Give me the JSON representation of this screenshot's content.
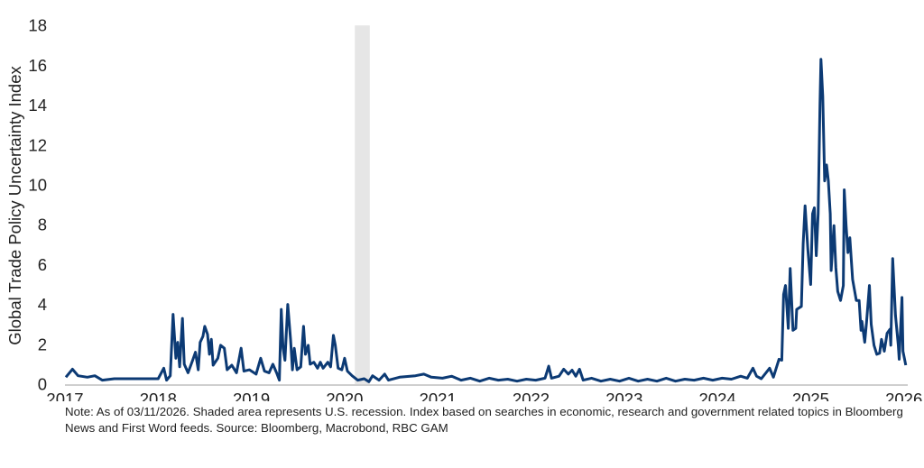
{
  "chart_data": {
    "type": "line",
    "title": "",
    "xlabel": "",
    "ylabel": "Global Trade Policy Uncertainty Index",
    "xlim": [
      2017,
      2026.05
    ],
    "ylim": [
      0,
      18
    ],
    "x_ticks": [
      "2017",
      "2018",
      "2019",
      "2020",
      "2021",
      "2022",
      "2023",
      "2024",
      "2025",
      "2026"
    ],
    "y_ticks": [
      "0",
      "2",
      "4",
      "6",
      "8",
      "10",
      "12",
      "14",
      "16",
      "18"
    ],
    "grid": false,
    "legend": "none",
    "colors": {
      "line": "#0c3a74",
      "recession": "#e6e6e6",
      "axis": "#bfbfbf"
    },
    "recession": {
      "start": 2020.11,
      "end": 2020.27
    },
    "series": [
      {
        "points": [
          [
            2017.01,
            0.35
          ],
          [
            2017.08,
            0.75
          ],
          [
            2017.14,
            0.42
          ],
          [
            2017.24,
            0.35
          ],
          [
            2017.32,
            0.42
          ],
          [
            2017.4,
            0.2
          ],
          [
            2017.53,
            0.27
          ],
          [
            2017.66,
            0.27
          ],
          [
            2017.79,
            0.27
          ],
          [
            2017.92,
            0.27
          ],
          [
            2018.0,
            0.27
          ],
          [
            2018.06,
            0.8
          ],
          [
            2018.09,
            0.2
          ],
          [
            2018.13,
            0.42
          ],
          [
            2018.16,
            3.5
          ],
          [
            2018.19,
            1.3
          ],
          [
            2018.21,
            2.1
          ],
          [
            2018.23,
            0.87
          ],
          [
            2018.26,
            3.3
          ],
          [
            2018.28,
            1.0
          ],
          [
            2018.32,
            0.57
          ],
          [
            2018.37,
            1.2
          ],
          [
            2018.4,
            1.6
          ],
          [
            2018.43,
            0.72
          ],
          [
            2018.45,
            2.1
          ],
          [
            2018.48,
            2.4
          ],
          [
            2018.5,
            2.9
          ],
          [
            2018.53,
            2.5
          ],
          [
            2018.55,
            1.5
          ],
          [
            2018.57,
            2.25
          ],
          [
            2018.59,
            0.95
          ],
          [
            2018.64,
            1.3
          ],
          [
            2018.67,
            1.95
          ],
          [
            2018.71,
            1.8
          ],
          [
            2018.74,
            0.72
          ],
          [
            2018.79,
            0.95
          ],
          [
            2018.84,
            0.57
          ],
          [
            2018.89,
            1.8
          ],
          [
            2018.92,
            0.65
          ],
          [
            2018.98,
            0.72
          ],
          [
            2019.05,
            0.5
          ],
          [
            2019.1,
            1.3
          ],
          [
            2019.14,
            0.65
          ],
          [
            2019.19,
            0.57
          ],
          [
            2019.23,
            1.0
          ],
          [
            2019.27,
            0.57
          ],
          [
            2019.3,
            0.2
          ],
          [
            2019.32,
            3.75
          ],
          [
            2019.34,
            1.8
          ],
          [
            2019.36,
            1.2
          ],
          [
            2019.39,
            4.0
          ],
          [
            2019.42,
            2.25
          ],
          [
            2019.44,
            0.72
          ],
          [
            2019.46,
            1.8
          ],
          [
            2019.49,
            0.72
          ],
          [
            2019.53,
            0.87
          ],
          [
            2019.56,
            2.9
          ],
          [
            2019.58,
            1.5
          ],
          [
            2019.61,
            1.95
          ],
          [
            2019.63,
            1.0
          ],
          [
            2019.67,
            1.1
          ],
          [
            2019.71,
            0.8
          ],
          [
            2019.74,
            1.1
          ],
          [
            2019.77,
            0.8
          ],
          [
            2019.82,
            1.1
          ],
          [
            2019.85,
            0.87
          ],
          [
            2019.88,
            2.45
          ],
          [
            2019.9,
            1.95
          ],
          [
            2019.93,
            0.8
          ],
          [
            2019.97,
            0.72
          ],
          [
            2020.0,
            1.3
          ],
          [
            2020.03,
            0.65
          ],
          [
            2020.08,
            0.42
          ],
          [
            2020.14,
            0.2
          ],
          [
            2020.21,
            0.27
          ],
          [
            2020.26,
            0.12
          ],
          [
            2020.3,
            0.42
          ],
          [
            2020.37,
            0.2
          ],
          [
            2020.43,
            0.5
          ],
          [
            2020.47,
            0.2
          ],
          [
            2020.59,
            0.35
          ],
          [
            2020.76,
            0.42
          ],
          [
            2020.85,
            0.5
          ],
          [
            2020.93,
            0.35
          ],
          [
            2021.05,
            0.3
          ],
          [
            2021.15,
            0.4
          ],
          [
            2021.25,
            0.2
          ],
          [
            2021.35,
            0.3
          ],
          [
            2021.45,
            0.15
          ],
          [
            2021.55,
            0.3
          ],
          [
            2021.65,
            0.2
          ],
          [
            2021.75,
            0.25
          ],
          [
            2021.85,
            0.15
          ],
          [
            2021.95,
            0.25
          ],
          [
            2022.05,
            0.2
          ],
          [
            2022.15,
            0.3
          ],
          [
            2022.19,
            0.9
          ],
          [
            2022.22,
            0.3
          ],
          [
            2022.3,
            0.4
          ],
          [
            2022.35,
            0.75
          ],
          [
            2022.4,
            0.5
          ],
          [
            2022.44,
            0.7
          ],
          [
            2022.48,
            0.4
          ],
          [
            2022.52,
            0.75
          ],
          [
            2022.56,
            0.2
          ],
          [
            2022.65,
            0.3
          ],
          [
            2022.75,
            0.15
          ],
          [
            2022.85,
            0.25
          ],
          [
            2022.95,
            0.15
          ],
          [
            2023.05,
            0.3
          ],
          [
            2023.15,
            0.15
          ],
          [
            2023.25,
            0.25
          ],
          [
            2023.35,
            0.15
          ],
          [
            2023.45,
            0.3
          ],
          [
            2023.55,
            0.15
          ],
          [
            2023.65,
            0.25
          ],
          [
            2023.75,
            0.2
          ],
          [
            2023.85,
            0.3
          ],
          [
            2023.95,
            0.2
          ],
          [
            2024.05,
            0.3
          ],
          [
            2024.15,
            0.25
          ],
          [
            2024.25,
            0.4
          ],
          [
            2024.32,
            0.3
          ],
          [
            2024.38,
            0.8
          ],
          [
            2024.42,
            0.4
          ],
          [
            2024.47,
            0.27
          ],
          [
            2024.56,
            0.8
          ],
          [
            2024.6,
            0.35
          ],
          [
            2024.66,
            1.25
          ],
          [
            2024.69,
            1.2
          ],
          [
            2024.71,
            4.5
          ],
          [
            2024.73,
            4.95
          ],
          [
            2024.76,
            2.8
          ],
          [
            2024.78,
            5.8
          ],
          [
            2024.81,
            2.7
          ],
          [
            2024.84,
            2.8
          ],
          [
            2024.85,
            3.75
          ],
          [
            2024.9,
            3.9
          ],
          [
            2024.92,
            7.05
          ],
          [
            2024.94,
            8.95
          ],
          [
            2024.97,
            6.75
          ],
          [
            2025.0,
            5.0
          ],
          [
            2025.02,
            8.55
          ],
          [
            2025.04,
            8.85
          ],
          [
            2025.06,
            6.45
          ],
          [
            2025.08,
            8.55
          ],
          [
            2025.1,
            14.0
          ],
          [
            2025.11,
            16.3
          ],
          [
            2025.13,
            14.45
          ],
          [
            2025.15,
            10.2
          ],
          [
            2025.17,
            11.0
          ],
          [
            2025.19,
            10.2
          ],
          [
            2025.21,
            8.55
          ],
          [
            2025.22,
            5.7
          ],
          [
            2025.25,
            7.95
          ],
          [
            2025.27,
            5.85
          ],
          [
            2025.29,
            4.65
          ],
          [
            2025.32,
            4.2
          ],
          [
            2025.35,
            4.95
          ],
          [
            2025.36,
            9.75
          ],
          [
            2025.38,
            7.95
          ],
          [
            2025.4,
            6.6
          ],
          [
            2025.42,
            7.35
          ],
          [
            2025.45,
            5.25
          ],
          [
            2025.49,
            4.2
          ],
          [
            2025.52,
            4.2
          ],
          [
            2025.54,
            2.7
          ],
          [
            2025.55,
            3.15
          ],
          [
            2025.58,
            2.1
          ],
          [
            2025.6,
            3.15
          ],
          [
            2025.63,
            4.95
          ],
          [
            2025.65,
            3.0
          ],
          [
            2025.68,
            1.95
          ],
          [
            2025.71,
            1.5
          ],
          [
            2025.74,
            1.55
          ],
          [
            2025.76,
            2.25
          ],
          [
            2025.79,
            1.65
          ],
          [
            2025.82,
            2.55
          ],
          [
            2025.85,
            2.75
          ],
          [
            2025.86,
            1.95
          ],
          [
            2025.88,
            6.3
          ],
          [
            2025.91,
            3.45
          ],
          [
            2025.94,
            1.95
          ],
          [
            2025.95,
            1.25
          ],
          [
            2025.98,
            4.35
          ],
          [
            2025.99,
            1.65
          ],
          [
            2026.02,
            0.95
          ]
        ]
      }
    ]
  },
  "note": "Note: As of 03/11/2026. Shaded area represents U.S. recession. Index based on searches in economic, research and government related topics in Bloomberg News and First Word feeds. Source: Bloomberg, Macrobond, RBC GAM"
}
